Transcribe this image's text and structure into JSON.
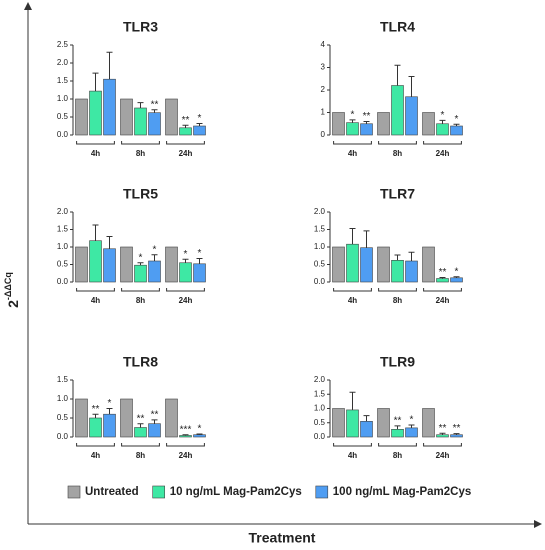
{
  "y_label": "2",
  "y_label_exponent": "-ΔΔCq",
  "x_label": "Treatment",
  "chart_data": [
    {
      "type": "bar",
      "title": "TLR3",
      "categories": [
        "4h",
        "8h",
        "24h"
      ],
      "ylim": [
        0,
        2.5
      ],
      "yticks": [
        {
          "value": 0,
          "label": "0.0"
        },
        0.5,
        {
          "value": 1,
          "label": "1.0"
        },
        1.5,
        {
          "value": 2,
          "label": "2.0"
        },
        2.5
      ],
      "series": [
        {
          "name": "Untreated",
          "color": "#a3a3a3",
          "values": [
            1,
            1,
            1
          ]
        },
        {
          "name": "10 ng/mL Mag-Pam2Cys",
          "color": "#3ee8a4",
          "values": [
            1.22,
            0.75,
            0.2
          ],
          "errors": [
            0.5,
            0.15,
            0.07
          ],
          "significance": [
            null,
            null,
            "**"
          ]
        },
        {
          "name": "100 ng/mL Mag-Pam2Cys",
          "color": "#4f9df2",
          "values": [
            1.55,
            0.62,
            0.25
          ],
          "errors": [
            0.75,
            0.08,
            0.07
          ],
          "significance": [
            null,
            "**",
            "*"
          ]
        }
      ]
    },
    {
      "type": "bar",
      "title": "TLR4",
      "categories": [
        "4h",
        "8h",
        "24h"
      ],
      "ylim": [
        0,
        4
      ],
      "yticks": [
        0,
        1,
        2,
        3,
        4
      ],
      "series": [
        {
          "name": "Untreated",
          "color": "#a3a3a3",
          "values": [
            1,
            1,
            1
          ]
        },
        {
          "name": "10 ng/mL Mag-Pam2Cys",
          "color": "#3ee8a4",
          "values": [
            0.55,
            2.2,
            0.5
          ],
          "errors": [
            0.12,
            0.9,
            0.15
          ],
          "significance": [
            "*",
            null,
            "*"
          ]
        },
        {
          "name": "100 ng/mL Mag-Pam2Cys",
          "color": "#4f9df2",
          "values": [
            0.5,
            1.7,
            0.4
          ],
          "errors": [
            0.1,
            0.9,
            0.08
          ],
          "significance": [
            "**",
            null,
            "*"
          ]
        }
      ]
    },
    {
      "type": "bar",
      "title": "TLR5",
      "categories": [
        "4h",
        "8h",
        "24h"
      ],
      "ylim": [
        0,
        2
      ],
      "yticks": [
        {
          "value": 0,
          "label": "0.0"
        },
        0.5,
        {
          "value": 1,
          "label": "1.0"
        },
        1.5,
        {
          "value": 2,
          "label": "2.0"
        }
      ],
      "series": [
        {
          "name": "Untreated",
          "color": "#a3a3a3",
          "values": [
            1,
            1,
            1
          ]
        },
        {
          "name": "10 ng/mL Mag-Pam2Cys",
          "color": "#3ee8a4",
          "values": [
            1.18,
            0.48,
            0.55
          ],
          "errors": [
            0.45,
            0.07,
            0.1
          ],
          "significance": [
            null,
            "*",
            "*"
          ]
        },
        {
          "name": "100 ng/mL Mag-Pam2Cys",
          "color": "#4f9df2",
          "values": [
            0.95,
            0.6,
            0.52
          ],
          "errors": [
            0.35,
            0.18,
            0.15
          ],
          "significance": [
            null,
            "*",
            "*"
          ]
        }
      ]
    },
    {
      "type": "bar",
      "title": "TLR7",
      "categories": [
        "4h",
        "8h",
        "24h"
      ],
      "ylim": [
        0,
        2
      ],
      "yticks": [
        {
          "value": 0,
          "label": "0.0"
        },
        0.5,
        {
          "value": 1,
          "label": "1.0"
        },
        1.5,
        {
          "value": 2,
          "label": "2.0"
        }
      ],
      "series": [
        {
          "name": "Untreated",
          "color": "#a3a3a3",
          "values": [
            1,
            1,
            1
          ]
        },
        {
          "name": "10 ng/mL Mag-Pam2Cys",
          "color": "#3ee8a4",
          "values": [
            1.08,
            0.62,
            0.1
          ],
          "errors": [
            0.45,
            0.15,
            0.03
          ],
          "significance": [
            null,
            null,
            "**"
          ]
        },
        {
          "name": "100 ng/mL Mag-Pam2Cys",
          "color": "#4f9df2",
          "values": [
            0.98,
            0.6,
            0.12
          ],
          "errors": [
            0.48,
            0.25,
            0.03
          ],
          "significance": [
            null,
            null,
            "*"
          ]
        }
      ]
    },
    {
      "type": "bar",
      "title": "TLR8",
      "categories": [
        "4h",
        "8h",
        "24h"
      ],
      "ylim": [
        0,
        1.5
      ],
      "yticks": [
        {
          "value": 0,
          "label": "0.0"
        },
        0.5,
        {
          "value": 1,
          "label": "1.0"
        },
        1.5
      ],
      "series": [
        {
          "name": "Untreated",
          "color": "#a3a3a3",
          "values": [
            1,
            1,
            1
          ]
        },
        {
          "name": "10 ng/mL Mag-Pam2Cys",
          "color": "#3ee8a4",
          "values": [
            0.5,
            0.25,
            0.04
          ],
          "errors": [
            0.1,
            0.1,
            0.02
          ],
          "significance": [
            "**",
            "**",
            "***"
          ]
        },
        {
          "name": "100 ng/mL Mag-Pam2Cys",
          "color": "#4f9df2",
          "values": [
            0.6,
            0.35,
            0.06
          ],
          "errors": [
            0.15,
            0.1,
            0.02
          ],
          "significance": [
            "*",
            "**",
            "*"
          ]
        }
      ]
    },
    {
      "type": "bar",
      "title": "TLR9",
      "categories": [
        "4h",
        "8h",
        "24h"
      ],
      "ylim": [
        0,
        2
      ],
      "yticks": [
        {
          "value": 0,
          "label": "0.0"
        },
        0.5,
        {
          "value": 1,
          "label": "1.0"
        },
        1.5,
        {
          "value": 2,
          "label": "2.0"
        }
      ],
      "series": [
        {
          "name": "Untreated",
          "color": "#a3a3a3",
          "values": [
            1,
            1,
            1
          ]
        },
        {
          "name": "10 ng/mL Mag-Pam2Cys",
          "color": "#3ee8a4",
          "values": [
            0.95,
            0.27,
            0.08
          ],
          "errors": [
            0.62,
            0.12,
            0.05
          ],
          "significance": [
            null,
            "**",
            "**"
          ]
        },
        {
          "name": "100 ng/mL Mag-Pam2Cys",
          "color": "#4f9df2",
          "values": [
            0.55,
            0.32,
            0.08
          ],
          "errors": [
            0.2,
            0.1,
            0.04
          ],
          "significance": [
            null,
            "*",
            "**"
          ]
        }
      ]
    }
  ]
}
